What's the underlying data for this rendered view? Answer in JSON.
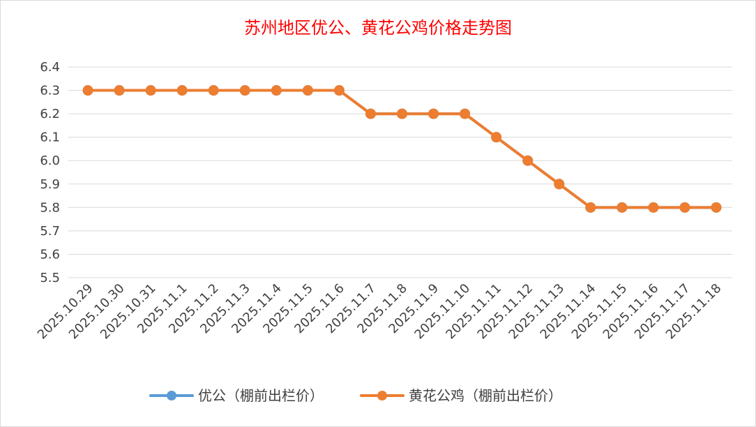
{
  "chart_data": {
    "type": "line",
    "title": "苏州地区优公、黄花公鸡价格走势图",
    "xlabel": "",
    "ylabel": "",
    "ylim": [
      5.5,
      6.4
    ],
    "yticks": [
      5.5,
      5.6,
      5.7,
      5.8,
      5.9,
      6.0,
      6.1,
      6.2,
      6.3,
      6.4
    ],
    "ytick_labels": [
      "5.5",
      "5.6",
      "5.7",
      "5.8",
      "5.9",
      "6.0",
      "6.1",
      "6.2",
      "6.3",
      "6.4"
    ],
    "grid": true,
    "legend_position": "bottom",
    "categories": [
      "2025.10.29",
      "2025.10.30",
      "2025.10.31",
      "2025.11.1",
      "2025.11.2",
      "2025.11.3",
      "2025.11.4",
      "2025.11.5",
      "2025.11.6",
      "2025.11.7",
      "2025.11.8",
      "2025.11.9",
      "2025.11.10",
      "2025.11.11",
      "2025.11.12",
      "2025.11.13",
      "2025.11.14",
      "2025.11.15",
      "2025.11.16",
      "2025.11.17",
      "2025.11.18"
    ],
    "series": [
      {
        "name": "优公（棚前出栏价）",
        "color": "#5b9bd5",
        "values": [
          6.3,
          6.3,
          6.3,
          6.3,
          6.3,
          6.3,
          6.3,
          6.3,
          6.3,
          6.2,
          6.2,
          6.2,
          6.2,
          6.1,
          6.0,
          5.9,
          5.8,
          5.8,
          5.8,
          5.8,
          5.8
        ]
      },
      {
        "name": "黄花公鸡（棚前出栏价）",
        "color": "#ed7d31",
        "values": [
          6.3,
          6.3,
          6.3,
          6.3,
          6.3,
          6.3,
          6.3,
          6.3,
          6.3,
          6.2,
          6.2,
          6.2,
          6.2,
          6.1,
          6.0,
          5.9,
          5.8,
          5.8,
          5.8,
          5.8,
          5.8
        ]
      }
    ]
  }
}
